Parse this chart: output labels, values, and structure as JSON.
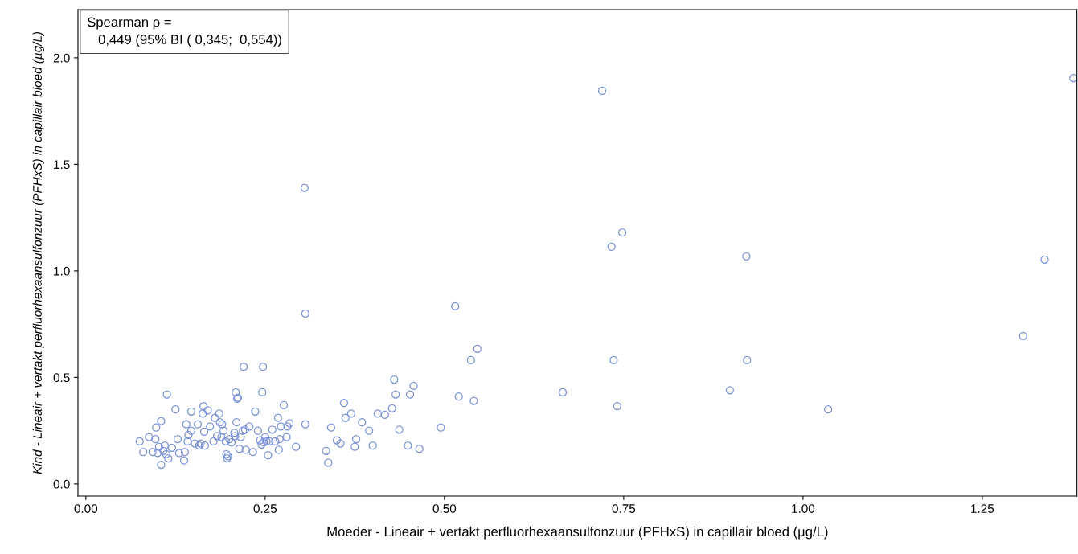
{
  "chart_data": {
    "type": "scatter",
    "xlabel": "Moeder - Lineair + vertakt perfluorhexaansulfonzuur (PFHxS) in capillair bloed (µg/L)",
    "ylabel": "Kind - Lineair + vertakt perfluorhexaansulfonzuur (PFHxS) in capillair bloed (µg/L)",
    "annotations": [
      "Spearman ρ =\n   0,449 (95% BI ( 0,345;  0,554))"
    ],
    "marker": "circle",
    "xlim": [
      -0.011,
      1.382
    ],
    "ylim": [
      -0.057,
      2.226
    ],
    "xticks": [
      {
        "value": 0,
        "label": "0.00"
      },
      {
        "value": 0.25,
        "label": "0.25"
      },
      {
        "value": 0.5,
        "label": "0.50"
      },
      {
        "value": 0.75,
        "label": "0.75"
      },
      {
        "value": 1,
        "label": "1.00"
      },
      {
        "value": 1.25,
        "label": "1.25"
      }
    ],
    "yticks": [
      {
        "value": 0,
        "label": "0.0"
      },
      {
        "value": 0.5,
        "label": "0.5"
      },
      {
        "value": 1,
        "label": "1.0"
      },
      {
        "value": 1.5,
        "label": "1.5"
      },
      {
        "value": 2,
        "label": "2.0"
      }
    ],
    "series": [
      {
        "color": "#7b93d6",
        "x": [
          0.075,
          0.08,
          0.088,
          0.093,
          0.097,
          0.098,
          0.1,
          0.102,
          0.105,
          0.105,
          0.108,
          0.11,
          0.112,
          0.113,
          0.115,
          0.12,
          0.125,
          0.128,
          0.13,
          0.137,
          0.138,
          0.14,
          0.142,
          0.143,
          0.147,
          0.147,
          0.152,
          0.156,
          0.158,
          0.16,
          0.163,
          0.164,
          0.165,
          0.166,
          0.17,
          0.173,
          0.178,
          0.18,
          0.183,
          0.186,
          0.187,
          0.189,
          0.19,
          0.192,
          0.195,
          0.196,
          0.197,
          0.198,
          0.2,
          0.203,
          0.207,
          0.208,
          0.209,
          0.21,
          0.211,
          0.212,
          0.214,
          0.216,
          0.219,
          0.22,
          0.222,
          0.223,
          0.228,
          0.233,
          0.236,
          0.24,
          0.243,
          0.245,
          0.246,
          0.247,
          0.248,
          0.25,
          0.252,
          0.254,
          0.256,
          0.26,
          0.264,
          0.268,
          0.269,
          0.27,
          0.272,
          0.276,
          0.28,
          0.281,
          0.284,
          0.293,
          0.306,
          0.305,
          0.306,
          0.335,
          0.338,
          0.342,
          0.35,
          0.355,
          0.36,
          0.362,
          0.37,
          0.375,
          0.377,
          0.385,
          0.395,
          0.4,
          0.407,
          0.417,
          0.427,
          0.43,
          0.432,
          0.437,
          0.449,
          0.452,
          0.457,
          0.465,
          0.495,
          0.515,
          0.52,
          0.537,
          0.541,
          0.546,
          0.665,
          0.72,
          0.733,
          0.736,
          0.741,
          0.748,
          0.898,
          0.921,
          0.922,
          1.035,
          1.307,
          1.337,
          1.377
        ],
        "values": [
          0.2,
          0.15,
          0.22,
          0.15,
          0.21,
          0.265,
          0.145,
          0.175,
          0.295,
          0.09,
          0.155,
          0.18,
          0.14,
          0.42,
          0.12,
          0.17,
          0.35,
          0.21,
          0.145,
          0.11,
          0.15,
          0.28,
          0.2,
          0.23,
          0.25,
          0.34,
          0.19,
          0.28,
          0.18,
          0.19,
          0.33,
          0.365,
          0.245,
          0.18,
          0.345,
          0.27,
          0.2,
          0.31,
          0.225,
          0.33,
          0.29,
          0.22,
          0.28,
          0.25,
          0.2,
          0.14,
          0.12,
          0.13,
          0.21,
          0.195,
          0.24,
          0.225,
          0.43,
          0.29,
          0.4,
          0.405,
          0.165,
          0.22,
          0.25,
          0.55,
          0.255,
          0.16,
          0.27,
          0.15,
          0.34,
          0.25,
          0.205,
          0.185,
          0.43,
          0.55,
          0.195,
          0.22,
          0.2,
          0.135,
          0.2,
          0.255,
          0.2,
          0.31,
          0.16,
          0.21,
          0.27,
          0.37,
          0.22,
          0.27,
          0.285,
          0.175,
          0.28,
          1.39,
          0.8,
          0.155,
          0.1,
          0.265,
          0.205,
          0.19,
          0.38,
          0.31,
          0.33,
          0.175,
          0.21,
          0.29,
          0.25,
          0.18,
          0.33,
          0.325,
          0.355,
          0.49,
          0.42,
          0.255,
          0.18,
          0.42,
          0.46,
          0.165,
          0.265,
          0.834,
          0.41,
          0.581,
          0.39,
          0.634,
          0.43,
          1.845,
          1.113,
          0.581,
          0.365,
          1.18,
          0.44,
          1.068,
          0.581,
          0.35,
          0.694,
          1.053,
          1.905
        ]
      }
    ]
  }
}
